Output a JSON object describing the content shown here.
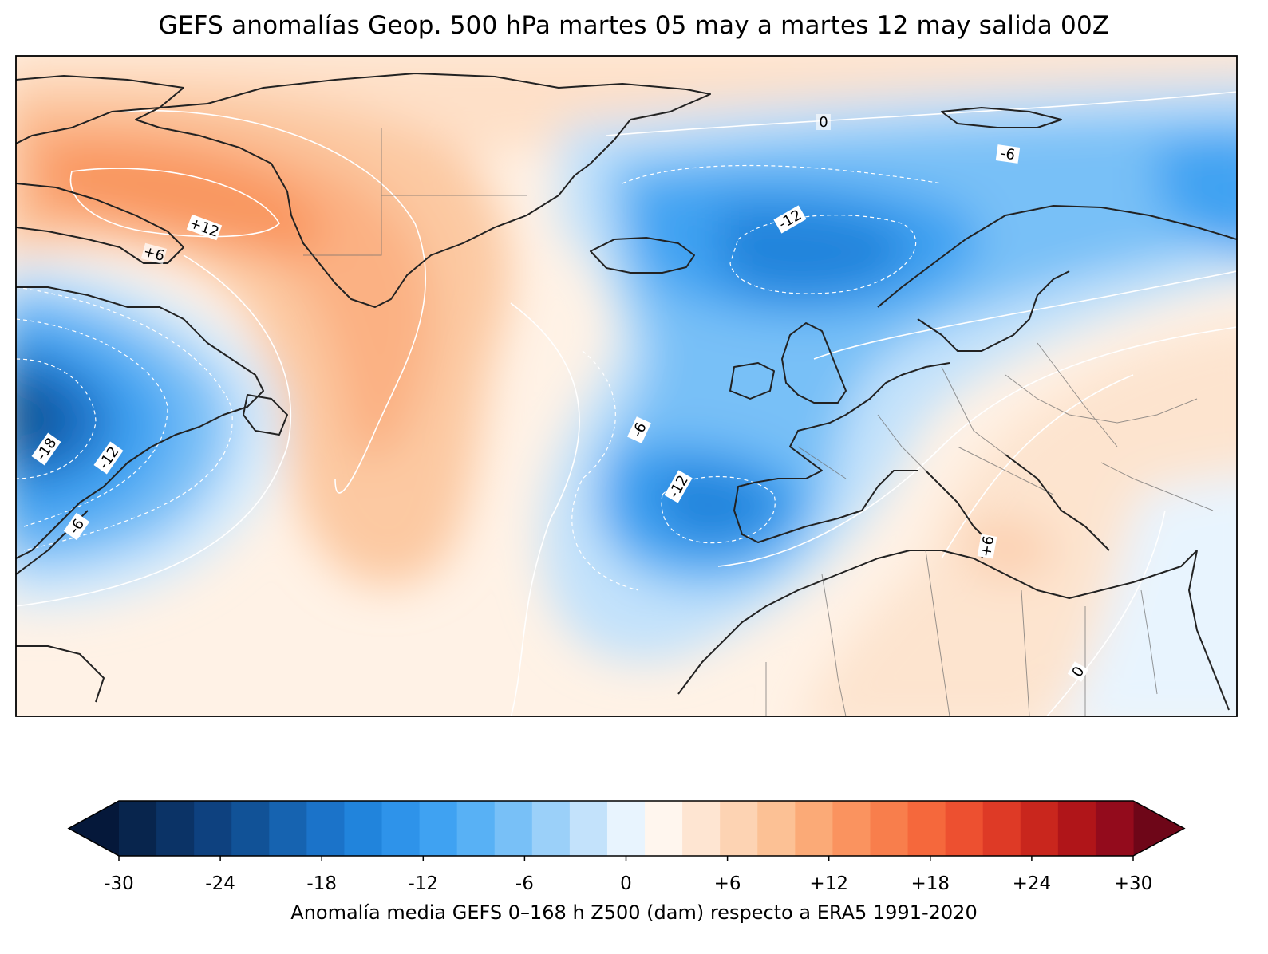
{
  "title": "GEFS anomalías Geop. 500 hPa martes 05 may a martes 12 may salida 00Z",
  "colorbar": {
    "caption": "Anomalía media GEFS 0–168 h Z500 (dam) respecto a ERA5 1991-2020",
    "min": -30,
    "max": 30,
    "step": 2,
    "tick_labels": [
      "-30",
      "-24",
      "-18",
      "-12",
      "-6",
      "0",
      "+6",
      "+12",
      "+18",
      "+24",
      "+30"
    ],
    "colors": [
      "#08254d",
      "#0b3366",
      "#0e417f",
      "#115297",
      "#1663b0",
      "#1b73c9",
      "#2184dc",
      "#2e93ea",
      "#3fa2f2",
      "#58b1f5",
      "#78c0f7",
      "#9bd0f9",
      "#c3e2fb",
      "#e8f4fe",
      "#fff6ee",
      "#fee5d2",
      "#fdd3b3",
      "#fcc195",
      "#fbaa77",
      "#fa935f",
      "#f87e4c",
      "#f5683c",
      "#ed5030",
      "#de3a26",
      "#c9261d",
      "#b01519",
      "#930b1c"
    ],
    "under_color": "#05183a",
    "over_color": "#6e0618"
  },
  "contour_labels": [
    {
      "text": "0"
    },
    {
      "text": "-6"
    },
    {
      "text": "-12"
    },
    {
      "text": "+12"
    },
    {
      "text": "+6"
    },
    {
      "text": "-18"
    },
    {
      "text": "-12"
    },
    {
      "text": "-6"
    },
    {
      "text": "-6"
    },
    {
      "text": "-12"
    },
    {
      "text": "+6"
    },
    {
      "text": "0"
    }
  ]
}
